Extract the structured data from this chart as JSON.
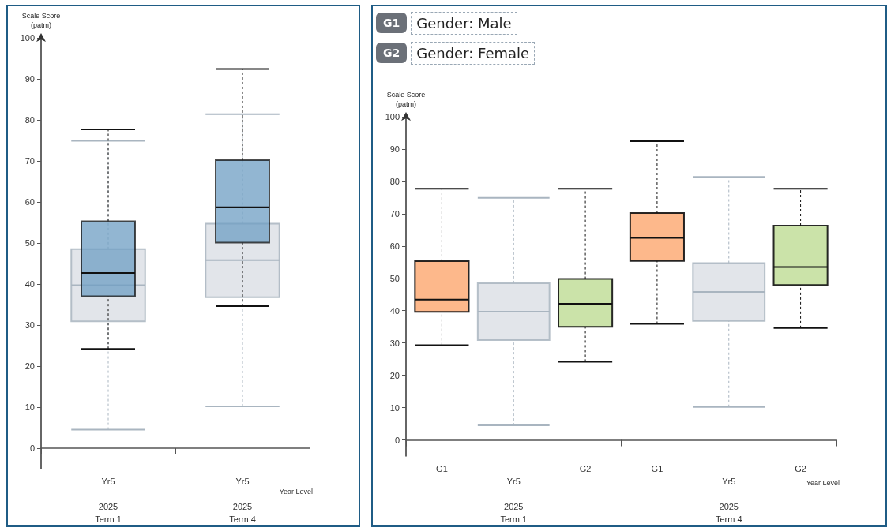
{
  "chart_data": [
    {
      "type": "box",
      "categories": [
        "Yr5\n\n2025\nTerm 1",
        "Yr5\n\n2025\nTerm 4"
      ],
      "xlabel": "Year Level",
      "ylabel": "Scale Score\n(patm)",
      "ylim": [
        -5,
        100
      ],
      "yticks": [
        0,
        10,
        20,
        30,
        40,
        50,
        60,
        70,
        80,
        90,
        100
      ],
      "series": [
        {
          "color": "#dde1e6",
          "boxes": [
            {
              "low": 4.5,
              "q1": 30.9,
              "median": 39.7,
              "q3": 48.5,
              "high": 74.9
            },
            {
              "low": 10.2,
              "q1": 36.8,
              "median": 45.8,
              "q3": 54.7,
              "high": 81.4
            }
          ]
        },
        {
          "color": "#6e9ec3",
          "boxes": [
            {
              "low": 24.2,
              "q1": 37.0,
              "median": 42.7,
              "q3": 55.3,
              "high": 77.7
            },
            {
              "low": 34.6,
              "q1": 50.1,
              "median": 58.7,
              "q3": 70.2,
              "high": 92.4
            }
          ]
        }
      ]
    },
    {
      "type": "box",
      "categories": [
        "G1",
        "Yr5\n\n2025\nTerm 1",
        "G2",
        "G1",
        "Yr5\n\n2025\nTerm 4",
        "G2"
      ],
      "xlabel": "Year Level",
      "ylabel": "Scale Score\n(patm)",
      "ylim": [
        -5,
        100
      ],
      "yticks": [
        0,
        10,
        20,
        30,
        40,
        50,
        60,
        70,
        80,
        90,
        100
      ],
      "annotations": [
        "G1",
        "Gender: Male",
        "G2",
        "Gender: Female"
      ],
      "series": [
        {
          "color": "#dde1e6",
          "boxes": [
            null,
            {
              "low": 4.5,
              "q1": 30.9,
              "median": 39.7,
              "q3": 48.5,
              "high": 74.9
            },
            null,
            null,
            {
              "low": 10.2,
              "q1": 36.8,
              "median": 45.8,
              "q3": 54.7,
              "high": 81.4
            },
            null
          ]
        },
        {
          "color": "#fdb07e",
          "boxes": [
            {
              "low": 29.3,
              "q1": 39.6,
              "median": 43.4,
              "q3": 55.3,
              "high": 77.7
            },
            null,
            null,
            {
              "low": 35.9,
              "q1": 55.4,
              "median": 62.5,
              "q3": 70.2,
              "high": 92.4
            },
            null,
            null
          ]
        },
        {
          "color": "#c5e0a0",
          "boxes": [
            null,
            null,
            {
              "low": 24.2,
              "q1": 35.0,
              "median": 42.1,
              "q3": 49.8,
              "high": 77.7
            },
            null,
            null,
            {
              "low": 34.6,
              "q1": 47.9,
              "median": 53.5,
              "q3": 66.3,
              "high": 77.7
            }
          ]
        }
      ]
    }
  ]
}
